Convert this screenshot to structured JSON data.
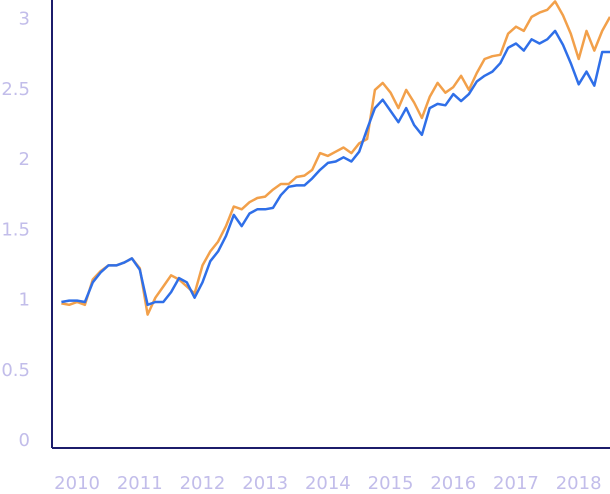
{
  "chart_data": {
    "type": "line",
    "x": [
      2009.75,
      2009.875,
      2010,
      2010.125,
      2010.25,
      2010.375,
      2010.5,
      2010.625,
      2010.75,
      2010.875,
      2011,
      2011.125,
      2011.25,
      2011.375,
      2011.5,
      2011.625,
      2011.75,
      2011.875,
      2012,
      2012.125,
      2012.25,
      2012.375,
      2012.5,
      2012.625,
      2012.75,
      2012.875,
      2013,
      2013.125,
      2013.25,
      2013.375,
      2013.5,
      2013.625,
      2013.75,
      2013.875,
      2014,
      2014.125,
      2014.25,
      2014.375,
      2014.5,
      2014.625,
      2014.75,
      2014.875,
      2015,
      2015.125,
      2015.25,
      2015.375,
      2015.5,
      2015.625,
      2015.75,
      2015.875,
      2016,
      2016.125,
      2016.25,
      2016.375,
      2016.5,
      2016.625,
      2016.75,
      2016.875,
      2017,
      2017.125,
      2017.25,
      2017.375,
      2017.5,
      2017.625,
      2017.75,
      2017.875,
      2018,
      2018.125,
      2018.25,
      2018.375,
      2018.5
    ],
    "series": [
      {
        "color": "#f2a04a",
        "values": [
          0.98,
          0.97,
          0.99,
          0.97,
          1.15,
          1.21,
          1.25,
          1.25,
          1.27,
          1.3,
          1.23,
          0.9,
          1.02,
          1.1,
          1.18,
          1.15,
          1.1,
          1.05,
          1.25,
          1.35,
          1.42,
          1.53,
          1.67,
          1.65,
          1.7,
          1.73,
          1.74,
          1.79,
          1.83,
          1.83,
          1.88,
          1.89,
          1.93,
          2.05,
          2.03,
          2.06,
          2.09,
          2.05,
          2.12,
          2.15,
          2.5,
          2.55,
          2.48,
          2.37,
          2.5,
          2.41,
          2.3,
          2.45,
          2.55,
          2.48,
          2.52,
          2.6,
          2.5,
          2.62,
          2.72,
          2.74,
          2.75,
          2.9,
          2.95,
          2.92,
          3.02,
          3.05,
          3.07,
          3.13,
          3.03,
          2.9,
          2.72,
          2.92,
          2.78,
          2.92,
          3.02
        ]
      },
      {
        "color": "#2f6fe8",
        "values": [
          0.99,
          1.0,
          1.0,
          0.99,
          1.13,
          1.2,
          1.25,
          1.25,
          1.27,
          1.3,
          1.22,
          0.97,
          0.99,
          0.99,
          1.06,
          1.16,
          1.13,
          1.02,
          1.13,
          1.28,
          1.35,
          1.46,
          1.61,
          1.53,
          1.62,
          1.65,
          1.65,
          1.66,
          1.75,
          1.81,
          1.82,
          1.82,
          1.87,
          1.93,
          1.98,
          1.99,
          2.02,
          1.99,
          2.06,
          2.22,
          2.37,
          2.43,
          2.35,
          2.27,
          2.37,
          2.25,
          2.18,
          2.37,
          2.4,
          2.39,
          2.47,
          2.42,
          2.47,
          2.56,
          2.6,
          2.63,
          2.69,
          2.8,
          2.83,
          2.78,
          2.86,
          2.83,
          2.86,
          2.92,
          2.82,
          2.69,
          2.54,
          2.63,
          2.53,
          2.77,
          2.77
        ]
      }
    ],
    "xlim": [
      2009.6,
      2018.5
    ],
    "xticks": [
      2010,
      2011,
      2012,
      2013,
      2014,
      2015,
      2016,
      2017,
      2018
    ],
    "ylim": [
      0,
      3.14
    ],
    "yticks": [
      0,
      0.5,
      1,
      1.5,
      2,
      2.5,
      3
    ]
  }
}
